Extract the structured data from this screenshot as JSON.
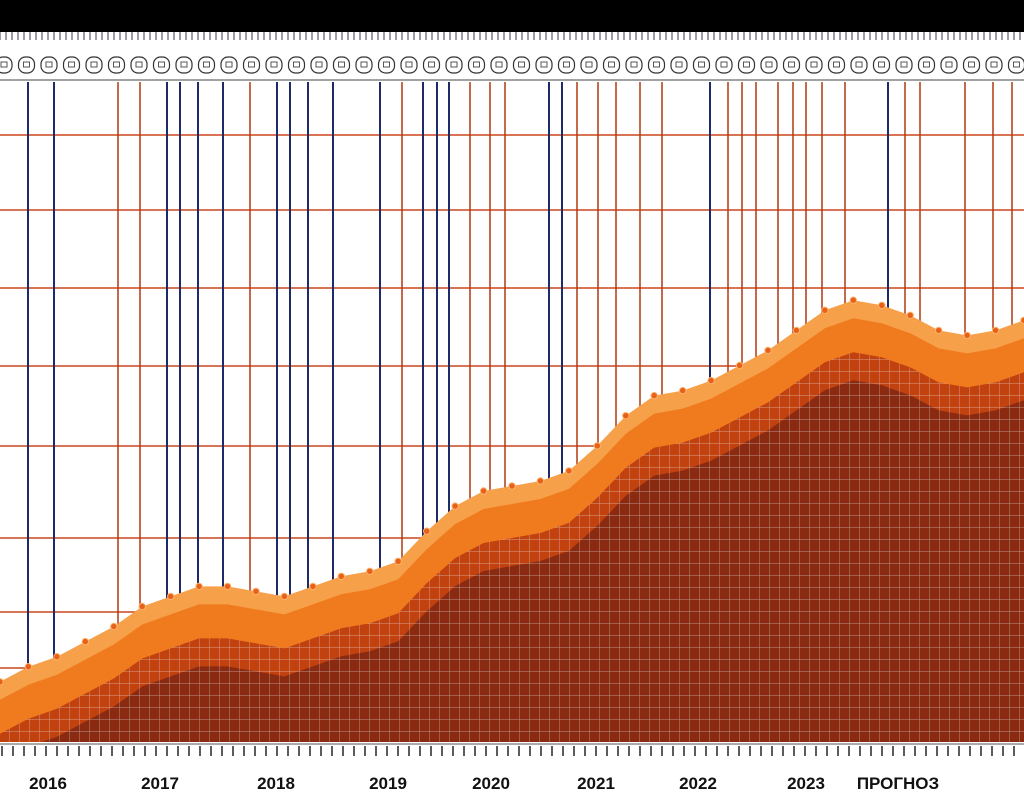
{
  "colors": {
    "background": "#ffffff",
    "top_bar": "#000000",
    "navy_line": "#1f2a6b",
    "rust_line": "#b23a12",
    "grid_line": "#c8461c",
    "fill_dark": "#8a2a10",
    "fill_mid": "#c2420f",
    "band_orange": "#f07a1e",
    "band_light": "#f7a04a",
    "mesh_line": "#e6e6ee",
    "text": "#111111"
  },
  "chart_data": {
    "type": "area",
    "x_tick_labels": [
      "2016",
      "2017",
      "2018",
      "2019",
      "2020",
      "2021",
      "2022",
      "2023",
      "ПРОГНОЗ"
    ],
    "grid": true,
    "ylim": [
      0,
      100
    ],
    "series": [
      {
        "x": [
          0,
          0.25,
          0.5,
          0.75,
          1,
          1.25,
          1.5,
          1.75,
          2,
          2.25,
          2.5,
          2.75,
          3,
          3.25,
          3.5,
          3.75,
          4,
          4.25,
          4.5,
          4.75,
          5,
          5.25,
          5.5,
          5.75,
          6,
          6.25,
          6.5,
          6.75,
          7,
          7.25,
          7.5,
          7.75,
          8,
          8.25,
          8.5,
          8.75,
          9
        ],
        "values": [
          12,
          15,
          17,
          20,
          23,
          27,
          29,
          31,
          31,
          30,
          29,
          31,
          33,
          34,
          36,
          42,
          47,
          50,
          51,
          52,
          54,
          59,
          65,
          69,
          70,
          72,
          75,
          78,
          82,
          86,
          88,
          87,
          85,
          82,
          81,
          82,
          84
        ]
      }
    ]
  }
}
